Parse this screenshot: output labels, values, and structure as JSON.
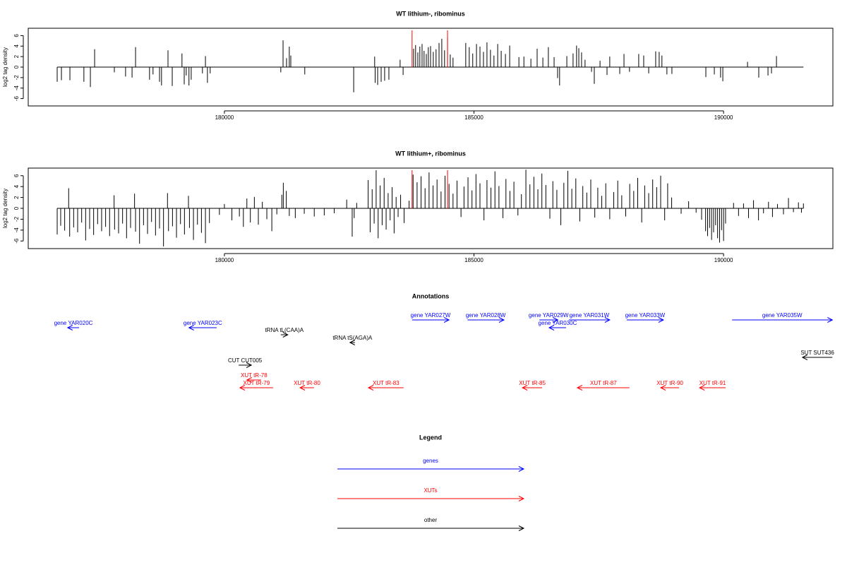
{
  "chart_data": [
    {
      "type": "bar",
      "title": "WT lithium-, ribominus",
      "ylabel": "log2 tag density",
      "color": "#000000",
      "x": [
        176650,
        176735,
        176905,
        177185,
        177315,
        177400,
        177795,
        178020,
        178150,
        178220,
        178500,
        178570,
        178700,
        178740,
        178870,
        178955,
        179150,
        179195,
        179235,
        179290,
        179335,
        179560,
        179620,
        179660,
        179715,
        181130,
        181175,
        181245,
        181300,
        181330,
        181610,
        182590,
        183010,
        183020,
        183070,
        183140,
        183210,
        183295,
        183520,
        183580,
        183790,
        183830,
        183875,
        183915,
        183960,
        184000,
        184045,
        184085,
        184130,
        184185,
        184240,
        184300,
        184355,
        184410,
        184470,
        184525,
        184580,
        184835,
        184905,
        184975,
        185050,
        185120,
        185190,
        185260,
        185330,
        185400,
        185475,
        185545,
        185630,
        185715,
        185900,
        186000,
        186140,
        186265,
        186380,
        186490,
        186605,
        186675,
        186715,
        186860,
        186985,
        187055,
        187100,
        187155,
        187225,
        187355,
        187410,
        187525,
        187665,
        187720,
        187920,
        188005,
        188115,
        188300,
        188400,
        188500,
        188640,
        188710,
        188765,
        188865,
        188965,
        189645,
        189815,
        189940,
        189985,
        190480,
        190705,
        190890,
        190960,
        191060
      ],
      "values": [
        -2.8,
        -2.5,
        -2.5,
        -2.8,
        -3.8,
        3.4,
        -1.0,
        -1.8,
        -2.0,
        3.8,
        -2.4,
        -1.4,
        -2.8,
        -3.5,
        3.2,
        -3.6,
        2.6,
        -3.3,
        -1.6,
        -3.5,
        -2.4,
        -1.2,
        2.1,
        -3.0,
        -1.2,
        -1.0,
        5.1,
        1.7,
        3.9,
        2.2,
        -1.4,
        -4.8,
        2.0,
        -3.0,
        -3.4,
        -2.8,
        -2.6,
        -2.4,
        1.4,
        -1.5,
        3.5,
        4.2,
        2.8,
        3.9,
        4.4,
        3.1,
        2.5,
        3.8,
        4.0,
        2.9,
        3.4,
        4.6,
        5.4,
        3.2,
        5.6,
        2.4,
        1.8,
        4.6,
        3.8,
        2.6,
        4.4,
        3.9,
        2.9,
        4.7,
        3.3,
        2.2,
        4.4,
        3.1,
        2.5,
        4.1,
        1.9,
        2.0,
        1.6,
        3.5,
        1.8,
        3.8,
        1.9,
        -2.1,
        -3.5,
        2.1,
        2.6,
        4.1,
        3.6,
        2.8,
        1.4,
        -0.9,
        -3.2,
        1.2,
        -1.5,
        2.0,
        -1.3,
        2.5,
        -0.9,
        2.5,
        2.2,
        -1.2,
        3.0,
        2.9,
        2.2,
        -1.4,
        -1.3,
        -1.9,
        -1.4,
        -2.0,
        -2.7,
        1.0,
        -2.0,
        -1.6,
        -1.2,
        2.1
      ],
      "xlim": [
        176070,
        192190
      ],
      "ylim": [
        -7.4,
        7.4
      ],
      "xticks": [
        180000,
        185000,
        190000
      ],
      "yticks": [
        -6,
        -4,
        -2,
        0,
        2,
        4,
        6
      ],
      "highlights": [
        183760,
        184470
      ],
      "highlight_color": "#ff0000"
    },
    {
      "type": "bar",
      "title": "WT lithium+, ribominus",
      "ylabel": "log2 tag density",
      "color": "#000000",
      "x": [
        176650,
        176720,
        176800,
        176880,
        176900,
        176980,
        177060,
        177140,
        177220,
        177300,
        177380,
        177460,
        177540,
        177620,
        177700,
        177790,
        177800,
        177880,
        177960,
        178040,
        178120,
        178200,
        178220,
        178300,
        178380,
        178460,
        178540,
        178620,
        178700,
        178780,
        178860,
        178880,
        178960,
        179040,
        179120,
        179200,
        179280,
        179300,
        179380,
        179460,
        179540,
        179620,
        179700,
        179900,
        180000,
        180150,
        180300,
        180380,
        180450,
        180520,
        180600,
        180680,
        180760,
        180850,
        180950,
        181050,
        181150,
        181180,
        181240,
        181300,
        181420,
        181600,
        181800,
        182000,
        182200,
        182450,
        182560,
        182600,
        182650,
        182880,
        182920,
        182960,
        183000,
        183040,
        183080,
        183120,
        183160,
        183200,
        183240,
        183280,
        183320,
        183360,
        183400,
        183440,
        183480,
        183530,
        183600,
        183700,
        183780,
        183860,
        183940,
        184020,
        184100,
        184180,
        184260,
        184340,
        184420,
        184500,
        184580,
        184660,
        184740,
        184800,
        184880,
        184960,
        185040,
        185120,
        185200,
        185260,
        185340,
        185420,
        185500,
        185580,
        185640,
        185720,
        185800,
        185880,
        185950,
        186040,
        186120,
        186200,
        186280,
        186360,
        186440,
        186520,
        186580,
        186660,
        186740,
        186800,
        186880,
        186960,
        187040,
        187120,
        187180,
        187260,
        187340,
        187420,
        187480,
        187560,
        187640,
        187720,
        187800,
        187880,
        187960,
        188040,
        188120,
        188200,
        188280,
        188360,
        188420,
        188500,
        188580,
        188660,
        188740,
        188820,
        188880,
        188960,
        189150,
        189300,
        189450,
        189560,
        189640,
        189680,
        189720,
        189760,
        189800,
        189840,
        189880,
        189920,
        189960,
        190000,
        190040,
        190200,
        190300,
        190400,
        190500,
        190600,
        190700,
        190800,
        190900,
        190980,
        191080,
        191200,
        191300,
        191400,
        191500,
        191560,
        191600
      ],
      "values": [
        -4.8,
        -3.2,
        -4.1,
        3.7,
        -5.2,
        -3.5,
        -4.4,
        -2.6,
        -5.9,
        -3.8,
        -4.9,
        -2.9,
        -4.2,
        -3.4,
        -5.1,
        2.4,
        -3.9,
        -4.6,
        -2.8,
        -5.5,
        -3.6,
        2.7,
        -4.3,
        -6.5,
        -3.1,
        -4.7,
        -2.5,
        -5.0,
        -3.7,
        -7.0,
        2.8,
        -4.2,
        -3.3,
        -5.4,
        -2.9,
        -4.8,
        2.3,
        -3.6,
        -5.8,
        -3.0,
        -4.5,
        -6.4,
        -2.7,
        -1.2,
        0.8,
        -2.2,
        -1.5,
        -3.4,
        1.8,
        -2.6,
        2.1,
        -3.0,
        1.2,
        -2.0,
        -4.2,
        -1.1,
        2.5,
        4.7,
        3.2,
        -1.4,
        -1.8,
        -1.0,
        -1.5,
        -1.3,
        -0.9,
        1.6,
        -5.2,
        -1.8,
        1.0,
        5.2,
        -4.4,
        3.5,
        -2.8,
        7.0,
        -5.5,
        4.2,
        -3.1,
        5.6,
        -3.9,
        2.8,
        -2.2,
        3.9,
        -4.6,
        2.1,
        -1.6,
        2.5,
        -2.7,
        1.4,
        6.2,
        4.8,
        5.9,
        3.7,
        6.6,
        4.2,
        5.3,
        3.1,
        6.0,
        4.5,
        2.7,
        5.1,
        -1.6,
        4.0,
        5.7,
        3.3,
        6.3,
        4.6,
        -2.2,
        5.2,
        3.8,
        6.8,
        4.1,
        -1.8,
        5.4,
        3.2,
        4.9,
        -1.3,
        2.6,
        7.1,
        4.4,
        5.8,
        3.5,
        6.4,
        4.3,
        -1.9,
        5.0,
        3.4,
        -3.1,
        4.7,
        6.9,
        3.6,
        5.5,
        -2.4,
        4.1,
        2.9,
        5.3,
        -1.7,
        3.8,
        2.3,
        4.6,
        -2.0,
        3.0,
        5.1,
        2.4,
        -1.5,
        4.5,
        3.2,
        5.6,
        -2.6,
        4.2,
        2.8,
        5.3,
        3.9,
        6.0,
        -2.2,
        4.6,
        2.0,
        -1.0,
        1.3,
        -0.8,
        -2.1,
        -4.2,
        -5.1,
        -3.6,
        -5.8,
        -4.4,
        -3.1,
        -5.5,
        -6.3,
        -4.0,
        -6.0,
        -2.8,
        1.0,
        -1.4,
        0.9,
        -1.8,
        1.5,
        -2.2,
        -0.9,
        1.2,
        -1.6,
        0.8,
        -1.1,
        1.9,
        -0.7,
        1.1,
        -0.8,
        0.9
      ],
      "xlim": [
        176070,
        192190
      ],
      "ylim": [
        -7.4,
        7.4
      ],
      "xticks": [
        180000,
        185000,
        190000
      ],
      "yticks": [
        -6,
        -4,
        -2,
        0,
        2,
        4,
        6
      ],
      "highlights": [
        183760,
        184470
      ],
      "highlight_color": "#ff0000"
    }
  ],
  "annotations": {
    "title": "Annotations",
    "features": [
      {
        "label": "gene YAR020C",
        "start": 176860,
        "end": 177090,
        "strand": "-",
        "color": "#0000ff"
      },
      {
        "label": "gene YAR023C",
        "start": 179290,
        "end": 179845,
        "strand": "-",
        "color": "#0000ff"
      },
      {
        "label": "gene YAR027W",
        "start": 183760,
        "end": 184500,
        "strand": "+",
        "color": "#0000ff"
      },
      {
        "label": "gene YAR028W",
        "start": 184870,
        "end": 185600,
        "strand": "+",
        "color": "#0000ff"
      },
      {
        "label": "gene YAR029W",
        "start": 186310,
        "end": 186680,
        "strand": "+",
        "color": "#0000ff"
      },
      {
        "label": "gene YAR030C",
        "start": 186505,
        "end": 186845,
        "strand": "-",
        "color": "#0000ff"
      },
      {
        "label": "gene YAR031W",
        "start": 186900,
        "end": 187720,
        "strand": "+",
        "color": "#0000ff"
      },
      {
        "label": "gene YAR033W",
        "start": 188060,
        "end": 188795,
        "strand": "+",
        "color": "#0000ff"
      },
      {
        "label": "gene YAR035W",
        "start": 190170,
        "end": 192180,
        "strand": "+",
        "color": "#0000ff"
      },
      {
        "label": "tRNA tL(CAA)A",
        "start": 181130,
        "end": 181270,
        "strand": "+",
        "color": "#000000"
      },
      {
        "label": "tRNA tS(AGA)A",
        "start": 182515,
        "end": 182615,
        "strand": "-",
        "color": "#000000"
      },
      {
        "label": "CUT CUT005",
        "start": 180285,
        "end": 180540,
        "strand": "+",
        "color": "#000000"
      },
      {
        "label": "SUT SUT436",
        "start": 191580,
        "end": 192180,
        "strand": "-",
        "color": "#000000"
      },
      {
        "label": "XUT tR-78",
        "start": 180450,
        "end": 180735,
        "strand": "-",
        "color": "#ff0000"
      },
      {
        "label": "XUT tR-79",
        "start": 180310,
        "end": 180975,
        "strand": "-",
        "color": "#ff0000"
      },
      {
        "label": "XUT tR-80",
        "start": 181515,
        "end": 181795,
        "strand": "-",
        "color": "#ff0000"
      },
      {
        "label": "XUT tR-83",
        "start": 182885,
        "end": 183590,
        "strand": "-",
        "color": "#ff0000"
      },
      {
        "label": "XUT tR-85",
        "start": 185970,
        "end": 186365,
        "strand": "-",
        "color": "#ff0000"
      },
      {
        "label": "XUT tR-87",
        "start": 187070,
        "end": 188115,
        "strand": "-",
        "color": "#ff0000"
      },
      {
        "label": "XUT tR-90",
        "start": 188740,
        "end": 189110,
        "strand": "-",
        "color": "#ff0000"
      },
      {
        "label": "XUT tR-91",
        "start": 189520,
        "end": 190040,
        "strand": "-",
        "color": "#ff0000"
      }
    ]
  },
  "legend": {
    "title": "Legend",
    "items": [
      {
        "label": "genes",
        "color": "#0000ff"
      },
      {
        "label": "XUTs",
        "color": "#ff0000"
      },
      {
        "label": "other",
        "color": "#000000"
      }
    ]
  }
}
